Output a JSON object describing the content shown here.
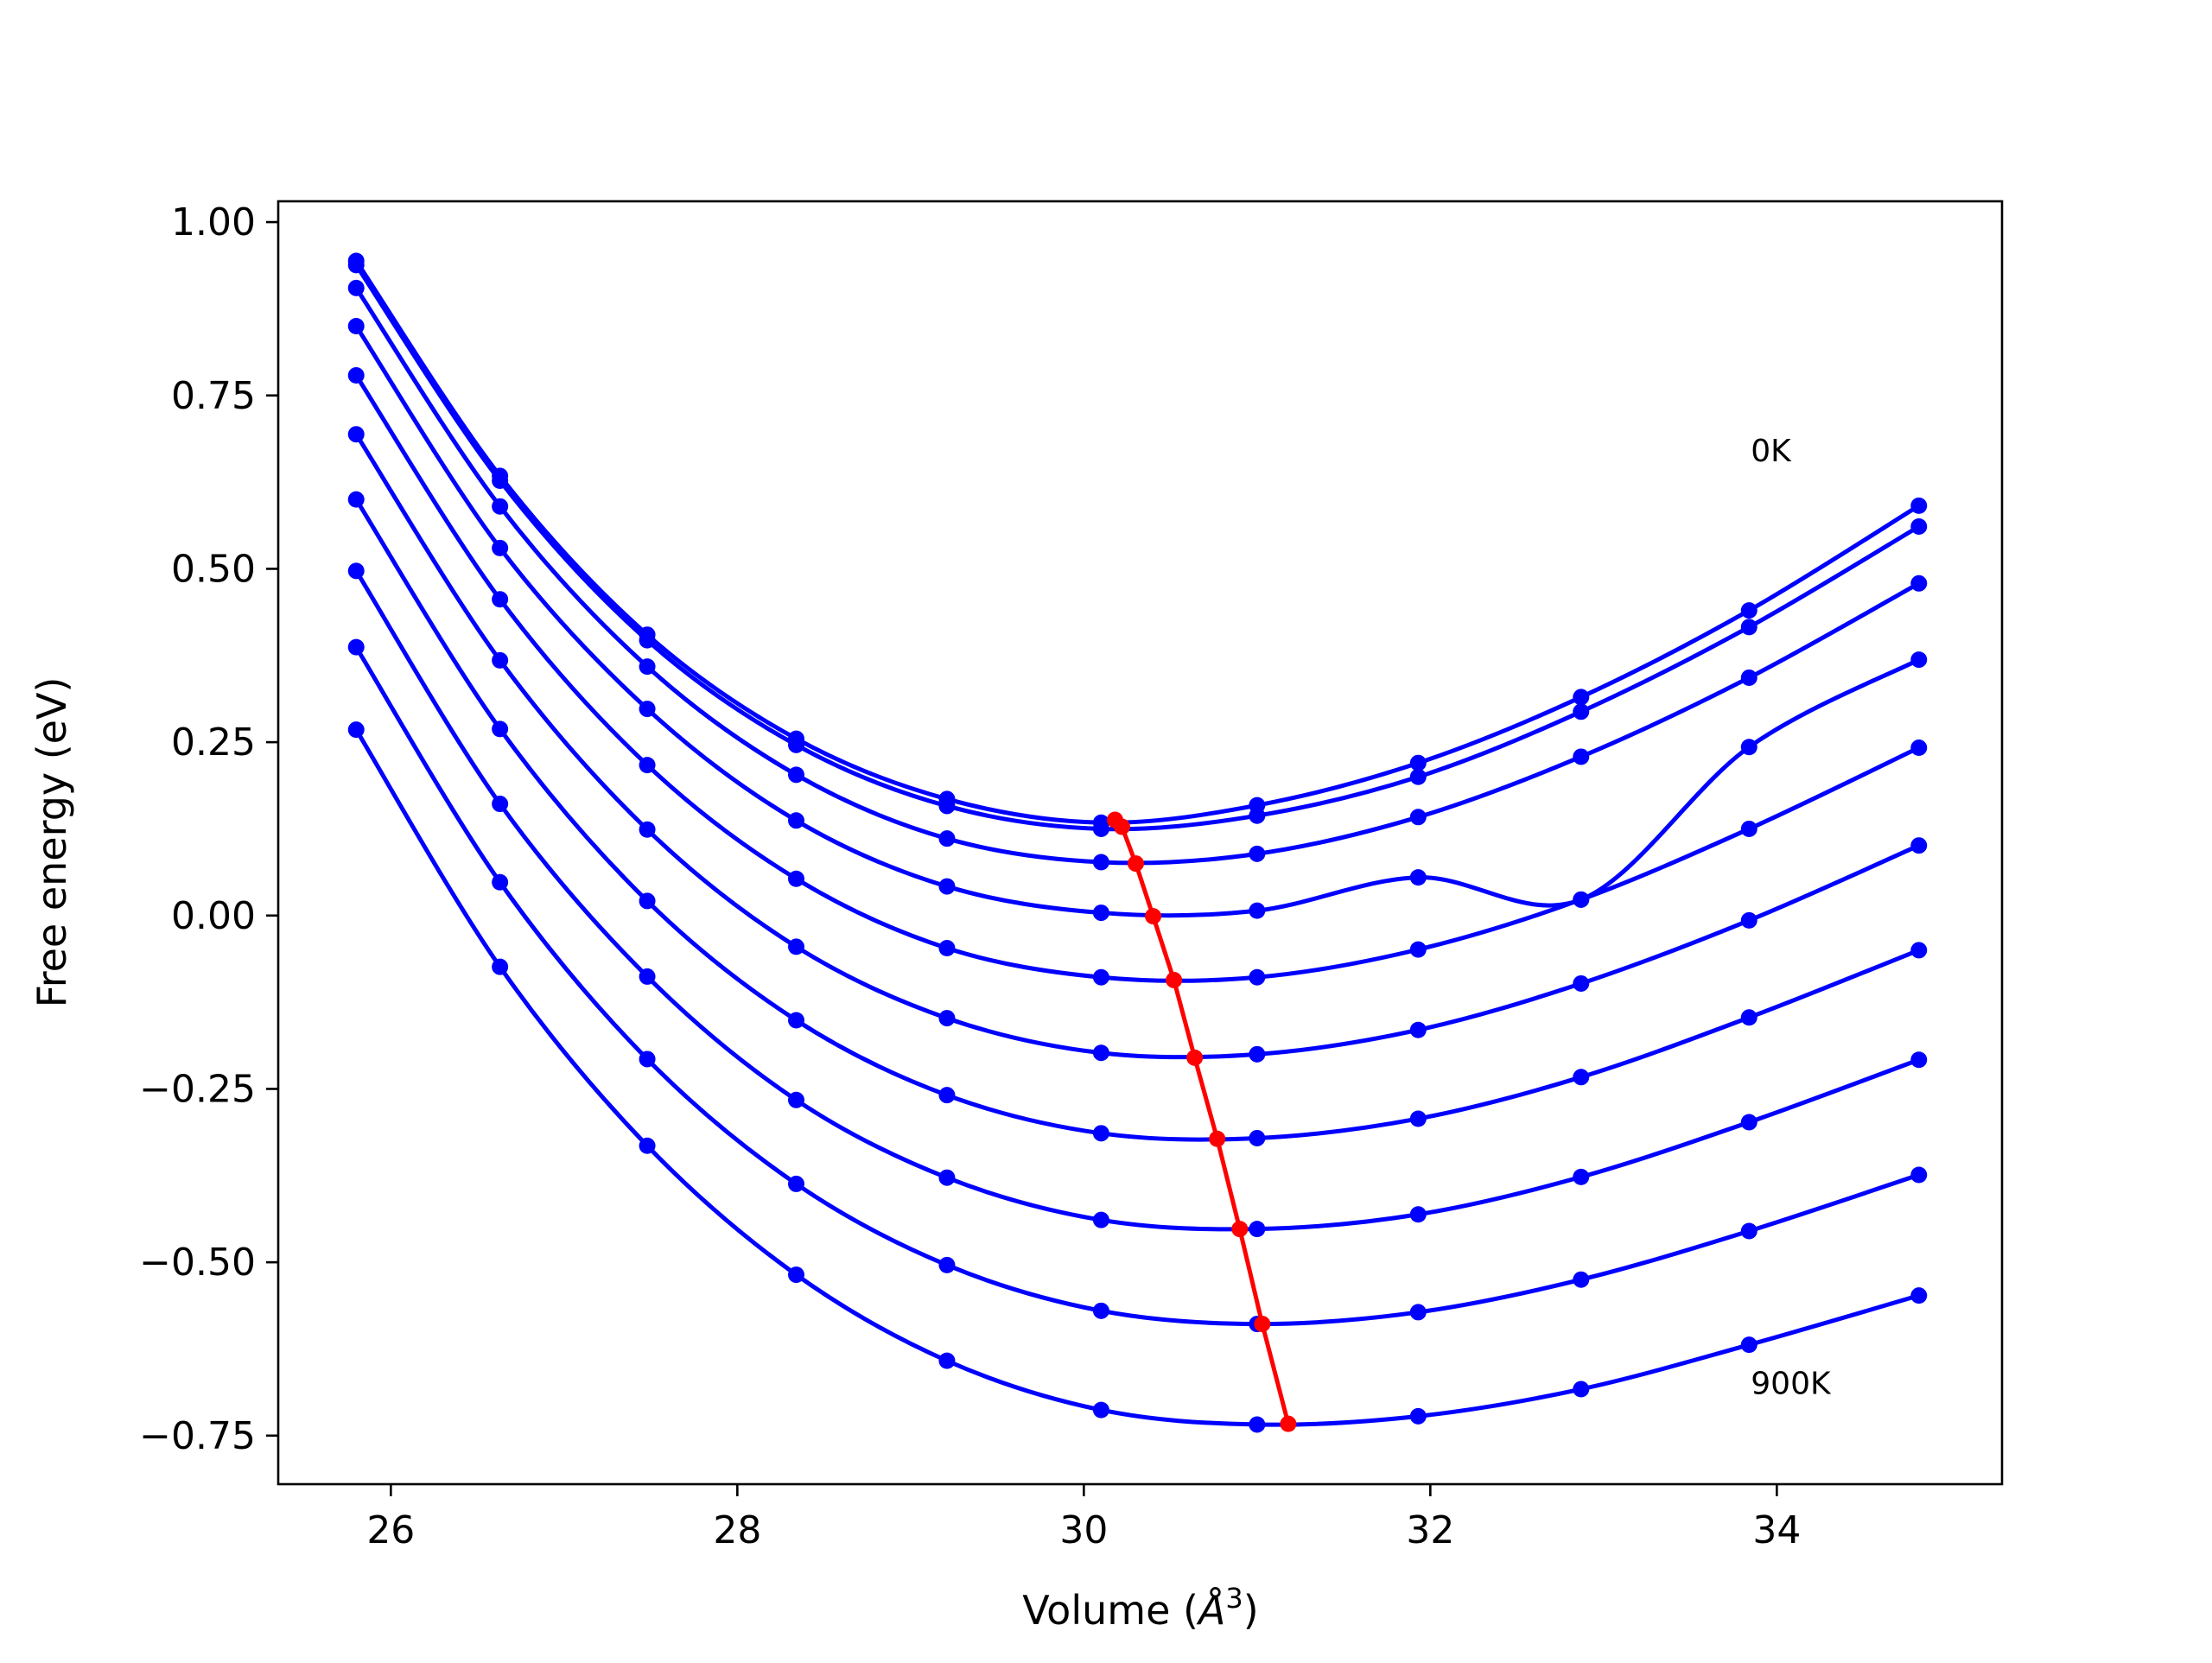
{
  "chart_data": {
    "type": "line",
    "title": "",
    "xlabel_text": "Volume (",
    "xlabel_unit": "Å",
    "xlabel_exp": "3",
    "xlabel_close": ")",
    "ylabel": "Free energy (eV)",
    "xlim": [
      25.35,
      35.3
    ],
    "ylim": [
      -0.82,
      1.03
    ],
    "xticks": [
      26,
      28,
      30,
      32,
      34
    ],
    "xtick_labels": [
      "26",
      "28",
      "30",
      "32",
      "34"
    ],
    "yticks": [
      1.0,
      0.75,
      0.5,
      0.25,
      0.0,
      -0.25,
      -0.5,
      -0.75
    ],
    "ytick_labels": [
      "1.00",
      "0.75",
      "0.50",
      "0.25",
      "0.00",
      "−0.25",
      "−0.50",
      "−0.75"
    ],
    "grid": false,
    "x": [
      25.8,
      26.63,
      27.48,
      28.34,
      29.21,
      30.1,
      31.0,
      31.93,
      32.87,
      33.84,
      34.82
    ],
    "series": [
      {
        "values": [
          0.944,
          0.634,
          0.405,
          0.255,
          0.168,
          0.134,
          0.159,
          0.22,
          0.315,
          0.44,
          0.591
        ],
        "color": "#0000ff"
      },
      {
        "values": [
          0.938,
          0.627,
          0.397,
          0.246,
          0.158,
          0.125,
          0.144,
          0.2,
          0.294,
          0.416,
          0.561
        ],
        "color": "#0000ff"
      },
      {
        "values": [
          0.905,
          0.59,
          0.359,
          0.203,
          0.111,
          0.077,
          0.089,
          0.142,
          0.229,
          0.343,
          0.479
        ],
        "color": "#0000ff"
      },
      {
        "values": [
          0.85,
          0.53,
          0.298,
          0.137,
          0.042,
          0.004,
          0.007,
          0.055,
          0.023,
          0.243,
          0.369
        ],
        "color": "#0000ff"
      },
      {
        "values": [
          0.779,
          0.456,
          0.217,
          0.053,
          -0.047,
          -0.089,
          -0.089,
          -0.049,
          0.023,
          0.125,
          0.242
        ],
        "color": "#0000ff"
      },
      {
        "values": [
          0.694,
          0.368,
          0.124,
          -0.045,
          -0.148,
          -0.198,
          -0.2,
          -0.165,
          -0.098,
          -0.007,
          0.101
        ],
        "color": "#0000ff"
      },
      {
        "values": [
          0.6,
          0.269,
          0.021,
          -0.151,
          -0.259,
          -0.314,
          -0.321,
          -0.293,
          -0.233,
          -0.147,
          -0.05
        ],
        "color": "#0000ff"
      },
      {
        "values": [
          0.497,
          0.161,
          -0.088,
          -0.266,
          -0.378,
          -0.439,
          -0.452,
          -0.431,
          -0.377,
          -0.298,
          -0.208
        ],
        "color": "#0000ff"
      },
      {
        "values": [
          0.387,
          0.048,
          -0.207,
          -0.387,
          -0.504,
          -0.57,
          -0.589,
          -0.572,
          -0.525,
          -0.455,
          -0.374
        ],
        "color": "#0000ff"
      },
      {
        "values": [
          0.268,
          -0.074,
          -0.332,
          -0.518,
          -0.642,
          -0.713,
          -0.734,
          -0.722,
          -0.683,
          -0.619,
          -0.548
        ],
        "color": "#0000ff"
      }
    ],
    "minima": {
      "x": [
        30.18,
        30.22,
        30.3,
        30.4,
        30.52,
        30.64,
        30.77,
        30.9,
        31.03,
        31.18
      ],
      "y": [
        0.138,
        0.128,
        0.075,
        -0.001,
        -0.093,
        -0.205,
        -0.322,
        -0.452,
        -0.589,
        -0.733
      ],
      "color": "#ff0000"
    },
    "annotations": [
      {
        "text": "0K",
        "x": 33.85,
        "y": 0.655
      },
      {
        "text": "900K",
        "x": 33.85,
        "y": -0.69
      }
    ],
    "colors": {
      "series": "#0000ff",
      "minima": "#ff0000",
      "axes": "#000000"
    }
  }
}
